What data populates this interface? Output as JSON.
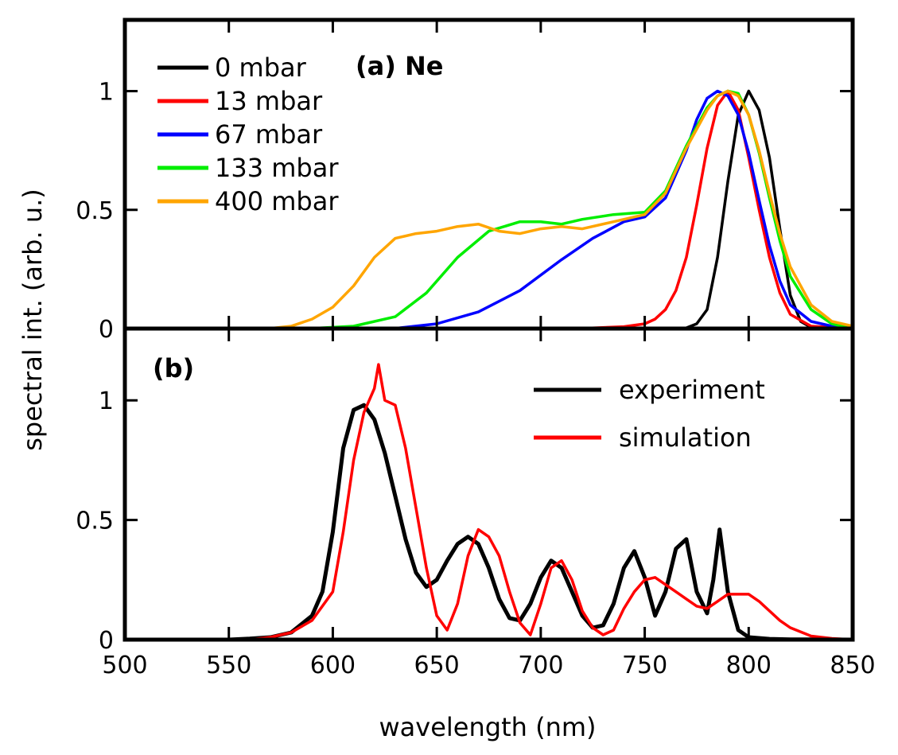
{
  "chart_data": [
    {
      "type": "line",
      "panel_label": "(a) Ne",
      "ylabel": "spectral int. (arb. u.)",
      "xlabel": "",
      "xlim": [
        500,
        850
      ],
      "ylim": [
        0,
        1.3
      ],
      "yticks": [
        "0",
        "0.5",
        "1"
      ],
      "ytick_values": [
        0,
        0.5,
        1
      ],
      "legend_position": "top-left",
      "series": [
        {
          "name": "0 mbar",
          "color": "#000000",
          "x": [
            500,
            760,
            770,
            775,
            780,
            785,
            790,
            795,
            800,
            805,
            810,
            815,
            820,
            825,
            830,
            850
          ],
          "y": [
            0,
            0,
            0.003,
            0.02,
            0.08,
            0.3,
            0.62,
            0.9,
            1.0,
            0.92,
            0.72,
            0.42,
            0.14,
            0.03,
            0.005,
            0
          ]
        },
        {
          "name": "13 mbar",
          "color": "#ff0000",
          "x": [
            500,
            720,
            740,
            750,
            755,
            760,
            765,
            770,
            775,
            780,
            785,
            790,
            795,
            800,
            805,
            810,
            815,
            820,
            830,
            850
          ],
          "y": [
            0,
            0.001,
            0.008,
            0.02,
            0.04,
            0.08,
            0.16,
            0.3,
            0.52,
            0.76,
            0.94,
            1.0,
            0.92,
            0.72,
            0.5,
            0.3,
            0.15,
            0.06,
            0.01,
            0
          ]
        },
        {
          "name": "67 mbar",
          "color": "#0000ff",
          "x": [
            500,
            630,
            650,
            670,
            690,
            710,
            725,
            740,
            750,
            760,
            770,
            775,
            780,
            785,
            790,
            795,
            800,
            805,
            810,
            815,
            820,
            830,
            840,
            850
          ],
          "y": [
            0,
            0.001,
            0.02,
            0.07,
            0.16,
            0.29,
            0.38,
            0.45,
            0.47,
            0.55,
            0.75,
            0.88,
            0.97,
            1.0,
            0.98,
            0.9,
            0.74,
            0.54,
            0.35,
            0.2,
            0.1,
            0.03,
            0.01,
            0
          ]
        },
        {
          "name": "133 mbar",
          "color": "#00ee00",
          "x": [
            500,
            590,
            610,
            630,
            645,
            660,
            675,
            690,
            700,
            710,
            720,
            735,
            750,
            760,
            770,
            780,
            785,
            790,
            795,
            800,
            805,
            810,
            815,
            820,
            830,
            840,
            850
          ],
          "y": [
            0,
            0.001,
            0.01,
            0.05,
            0.15,
            0.3,
            0.41,
            0.45,
            0.45,
            0.44,
            0.46,
            0.48,
            0.49,
            0.58,
            0.77,
            0.93,
            0.98,
            1.0,
            0.99,
            0.9,
            0.74,
            0.55,
            0.37,
            0.22,
            0.08,
            0.02,
            0
          ]
        },
        {
          "name": "400 mbar",
          "color": "#ffa500",
          "x": [
            500,
            570,
            580,
            590,
            600,
            610,
            620,
            630,
            640,
            650,
            660,
            670,
            680,
            690,
            700,
            710,
            720,
            735,
            750,
            760,
            770,
            780,
            785,
            790,
            795,
            800,
            805,
            810,
            815,
            820,
            830,
            840,
            850
          ],
          "y": [
            0,
            0.001,
            0.01,
            0.04,
            0.09,
            0.18,
            0.3,
            0.38,
            0.4,
            0.41,
            0.43,
            0.44,
            0.41,
            0.4,
            0.42,
            0.43,
            0.42,
            0.45,
            0.48,
            0.57,
            0.76,
            0.92,
            0.98,
            1.0,
            0.98,
            0.9,
            0.75,
            0.57,
            0.4,
            0.26,
            0.1,
            0.03,
            0.01
          ]
        }
      ]
    },
    {
      "type": "line",
      "panel_label": "(b)",
      "xlabel": "wavelength (nm)",
      "ylabel": "spectral int. (arb. u.)",
      "xlim": [
        500,
        850
      ],
      "ylim": [
        0,
        1.3
      ],
      "xticks": [
        "500",
        "550",
        "600",
        "650",
        "700",
        "750",
        "800",
        "850"
      ],
      "xtick_values": [
        500,
        550,
        600,
        650,
        700,
        750,
        800,
        850
      ],
      "yticks": [
        "0",
        "0.5",
        "1"
      ],
      "ytick_values": [
        0,
        0.5,
        1
      ],
      "legend_position": "top-right",
      "series": [
        {
          "name": "experiment",
          "color": "#000000",
          "x": [
            500,
            550,
            560,
            570,
            580,
            590,
            595,
            600,
            605,
            610,
            615,
            620,
            625,
            630,
            635,
            640,
            645,
            650,
            655,
            660,
            665,
            670,
            675,
            680,
            685,
            690,
            695,
            700,
            705,
            710,
            715,
            720,
            725,
            730,
            735,
            740,
            745,
            750,
            755,
            760,
            765,
            770,
            775,
            780,
            783,
            786,
            790,
            795,
            800,
            810,
            820,
            850
          ],
          "y": [
            0,
            0,
            0.004,
            0.01,
            0.03,
            0.1,
            0.2,
            0.45,
            0.8,
            0.96,
            0.98,
            0.92,
            0.78,
            0.6,
            0.42,
            0.28,
            0.22,
            0.25,
            0.33,
            0.4,
            0.43,
            0.4,
            0.3,
            0.17,
            0.09,
            0.08,
            0.15,
            0.26,
            0.33,
            0.3,
            0.2,
            0.1,
            0.05,
            0.06,
            0.15,
            0.3,
            0.37,
            0.26,
            0.1,
            0.2,
            0.38,
            0.42,
            0.2,
            0.11,
            0.25,
            0.46,
            0.2,
            0.04,
            0.01,
            0.003,
            0.001,
            0
          ]
        },
        {
          "name": "simulation",
          "color": "#ff0000",
          "x": [
            500,
            560,
            570,
            580,
            590,
            600,
            605,
            610,
            615,
            620,
            622,
            625,
            630,
            635,
            640,
            645,
            650,
            655,
            660,
            665,
            670,
            675,
            680,
            685,
            690,
            695,
            700,
            705,
            710,
            715,
            720,
            725,
            730,
            735,
            740,
            745,
            750,
            755,
            760,
            765,
            770,
            775,
            780,
            785,
            790,
            795,
            800,
            805,
            810,
            815,
            820,
            830,
            840,
            850
          ],
          "y": [
            0,
            0,
            0.01,
            0.03,
            0.08,
            0.2,
            0.45,
            0.75,
            0.95,
            1.05,
            1.15,
            1.0,
            0.98,
            0.8,
            0.55,
            0.3,
            0.1,
            0.04,
            0.15,
            0.35,
            0.46,
            0.43,
            0.35,
            0.2,
            0.07,
            0.02,
            0.15,
            0.3,
            0.33,
            0.25,
            0.12,
            0.05,
            0.02,
            0.04,
            0.13,
            0.2,
            0.25,
            0.26,
            0.23,
            0.2,
            0.17,
            0.14,
            0.13,
            0.16,
            0.19,
            0.19,
            0.19,
            0.16,
            0.12,
            0.08,
            0.05,
            0.015,
            0.005,
            0
          ]
        }
      ]
    }
  ]
}
